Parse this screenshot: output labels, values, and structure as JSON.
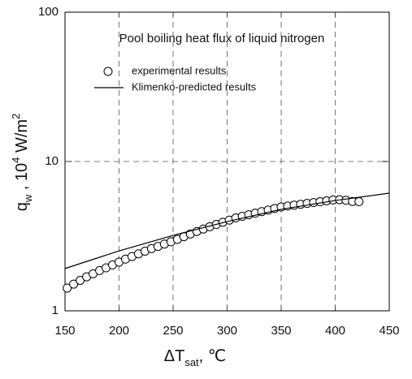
{
  "chart_data": {
    "type": "scatter",
    "title": "Pool boiling heat flux of liquid nitrogen",
    "x_label": [
      {
        "text": "ΔT"
      },
      {
        "text": "sat",
        "sub": true
      },
      {
        "text": ",  ℃"
      }
    ],
    "y_label": [
      {
        "text": "q"
      },
      {
        "text": "w",
        "sub": true
      },
      {
        "text": " ,  10"
      },
      {
        "text": "4",
        "sup": true
      },
      {
        "text": " W/m"
      },
      {
        "text": "2",
        "sup": true
      }
    ],
    "xlim": [
      150,
      450
    ],
    "xticks": [
      150,
      200,
      250,
      300,
      350,
      400,
      450
    ],
    "ylim": [
      1,
      100
    ],
    "yticks": [
      1,
      10,
      100
    ],
    "log_y": true,
    "grid": true,
    "legend": "top",
    "series": [
      {
        "name": "experimental results",
        "type": "scatter",
        "color": "#000000",
        "x": [
          152,
          158,
          164,
          170,
          176,
          182,
          188,
          194,
          200,
          206,
          212,
          218,
          224,
          230,
          236,
          242,
          248,
          254,
          260,
          266,
          272,
          278,
          284,
          290,
          296,
          302,
          308,
          314,
          320,
          326,
          332,
          338,
          344,
          350,
          356,
          362,
          368,
          374,
          380,
          386,
          392,
          398,
          404,
          410,
          416,
          422
        ],
        "values": [
          1.42,
          1.51,
          1.6,
          1.69,
          1.77,
          1.86,
          1.94,
          2.03,
          2.12,
          2.22,
          2.31,
          2.41,
          2.51,
          2.61,
          2.7,
          2.8,
          2.9,
          3.01,
          3.14,
          3.27,
          3.4,
          3.53,
          3.66,
          3.79,
          3.92,
          4.05,
          4.19,
          4.3,
          4.4,
          4.51,
          4.62,
          4.73,
          4.85,
          4.96,
          5.03,
          5.1,
          5.17,
          5.24,
          5.31,
          5.38,
          5.45,
          5.53,
          5.55,
          5.5,
          5.4,
          5.38
        ]
      },
      {
        "name": "Klimenko-predicted results",
        "type": "line",
        "color": "#000000",
        "x": [
          150,
          200,
          250,
          300,
          350,
          400,
          450
        ],
        "values": [
          1.92,
          2.52,
          3.2,
          3.96,
          4.78,
          5.48,
          6.14
        ]
      }
    ]
  }
}
